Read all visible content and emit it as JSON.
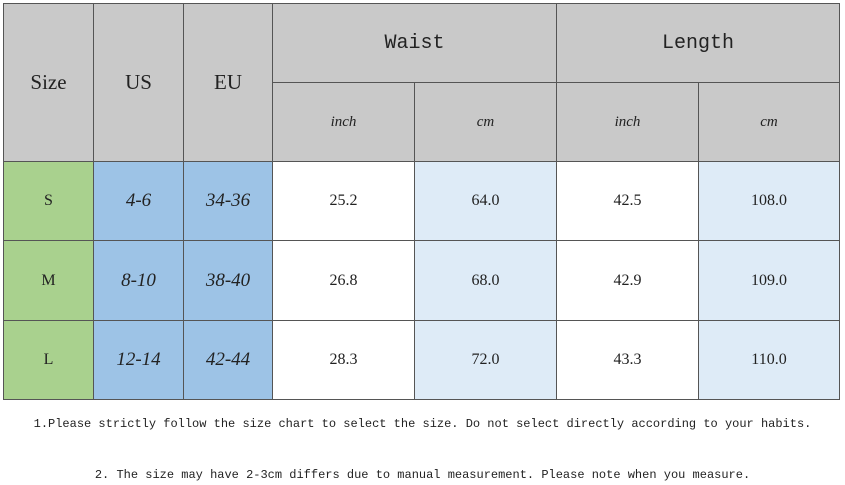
{
  "table": {
    "header": {
      "size": "Size",
      "us": "US",
      "eu": "EU",
      "waist": "Waist",
      "length": "Length",
      "units": [
        "inch",
        "cm",
        "inch",
        "cm"
      ]
    },
    "rows": [
      [
        "S",
        "4-6",
        "34-36",
        "25.2",
        "64.0",
        "42.5",
        "108.0"
      ],
      [
        "M",
        "8-10",
        "38-40",
        "26.8",
        "68.0",
        "42.9",
        "109.0"
      ],
      [
        "L",
        "12-14",
        "42-44",
        "28.3",
        "72.0",
        "43.3",
        "110.0"
      ]
    ]
  },
  "notes": [
    "1.Please strictly follow the size chart to select the size. Do not select directly according to your habits.",
    "2. The size may have 2-3cm differs due to manual measurement. Please note when you measure."
  ]
}
